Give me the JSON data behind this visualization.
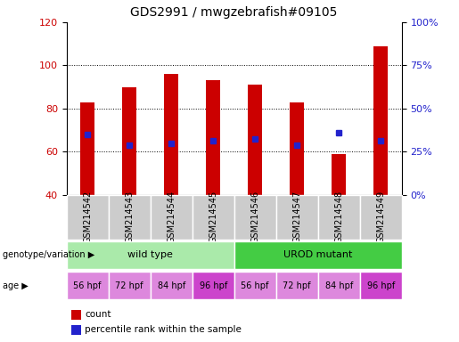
{
  "title": "GDS2991 / mwgzebrafish#09105",
  "samples": [
    "GSM214542",
    "GSM214543",
    "GSM214544",
    "GSM214545",
    "GSM214546",
    "GSM214547",
    "GSM214548",
    "GSM214549"
  ],
  "counts": [
    83,
    90,
    96,
    93,
    91,
    83,
    59,
    109
  ],
  "percentile_ranks_left": [
    68,
    63,
    64,
    65,
    66,
    63,
    69,
    65
  ],
  "ylim_left": [
    40,
    120
  ],
  "yticks_left": [
    40,
    60,
    80,
    100,
    120
  ],
  "ylim_right": [
    0,
    100
  ],
  "yticks_right": [
    0,
    25,
    50,
    75,
    100
  ],
  "bar_color": "#cc0000",
  "dot_color": "#2222cc",
  "bar_bottom": 40,
  "bar_width": 0.35,
  "genotype_labels": [
    "wild type",
    "UROD mutant"
  ],
  "genotype_colors": [
    "#aaeaaa",
    "#44cc44"
  ],
  "age_labels": [
    "56 hpf",
    "72 hpf",
    "84 hpf",
    "96 hpf",
    "56 hpf",
    "72 hpf",
    "84 hpf",
    "96 hpf"
  ],
  "age_color_normal": "#dd88dd",
  "age_color_96": "#cc44cc",
  "sample_box_color": "#cccccc",
  "legend_count_color": "#cc0000",
  "legend_dot_color": "#2222cc",
  "background_color": "#ffffff",
  "title_fontsize": 10,
  "tick_fontsize": 8,
  "annot_fontsize": 8,
  "sample_fontsize": 7
}
